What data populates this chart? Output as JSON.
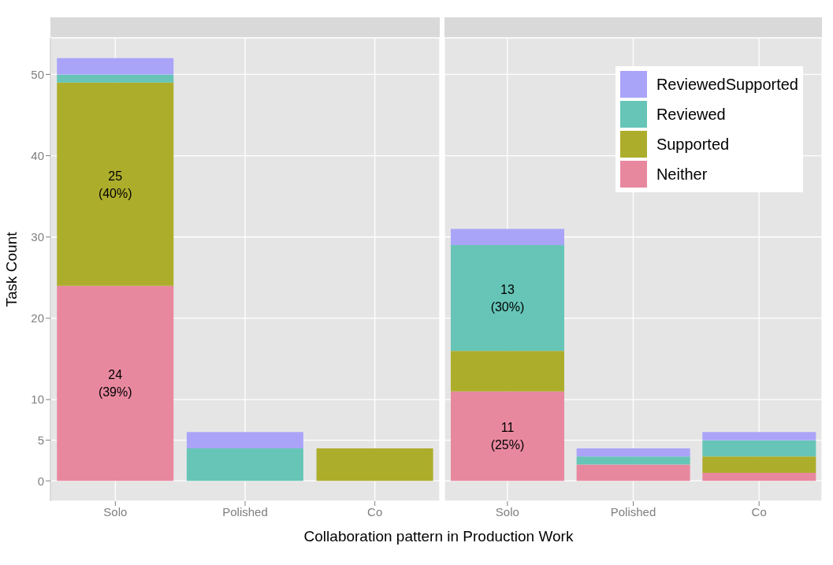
{
  "chart_data": [
    {
      "type": "bar",
      "stacked": true,
      "ylabel": "Task Count",
      "categories": [
        "Solo",
        "Polished",
        "Co"
      ],
      "ylim": [
        -2.5,
        54.5
      ],
      "yticks": [
        0,
        5,
        10,
        20,
        30,
        40,
        50
      ],
      "grid": true,
      "legend": false,
      "series": [
        {
          "color": "#e8889f",
          "values": [
            24,
            0,
            0
          ],
          "value_labels": [
            "24\n(39%)",
            null,
            null
          ]
        },
        {
          "color": "#adad2c",
          "values": [
            25,
            0,
            4
          ],
          "value_labels": [
            "25\n(40%)",
            null,
            null
          ]
        },
        {
          "color": "#66c5b7",
          "values": [
            1,
            4,
            0
          ]
        },
        {
          "color": "#aaa4f9",
          "values": [
            2,
            2,
            0
          ]
        }
      ]
    },
    {
      "type": "bar",
      "stacked": true,
      "xlabel": "Collaboration pattern in Production Work",
      "categories": [
        "Solo",
        "Polished",
        "Co"
      ],
      "ylim": [
        -2.5,
        54.5
      ],
      "yticks": [
        0,
        5,
        10,
        20,
        30,
        40,
        50
      ],
      "tick_labels": "x",
      "grid": true,
      "legend": "top right",
      "series": [
        {
          "name": "Neither",
          "color": "#e8889f",
          "values": [
            11,
            2,
            1
          ],
          "value_labels": [
            "11\n(25%)",
            null,
            null
          ]
        },
        {
          "name": "Supported",
          "color": "#adad2c",
          "values": [
            5,
            0,
            2
          ]
        },
        {
          "name": "Reviewed",
          "color": "#66c5b7",
          "values": [
            13,
            1,
            2
          ],
          "value_labels": [
            "13\n(30%)",
            null,
            null
          ]
        },
        {
          "name": "ReviewedSupported",
          "color": "#aaa4f9",
          "values": [
            2,
            1,
            1
          ]
        }
      ]
    }
  ]
}
